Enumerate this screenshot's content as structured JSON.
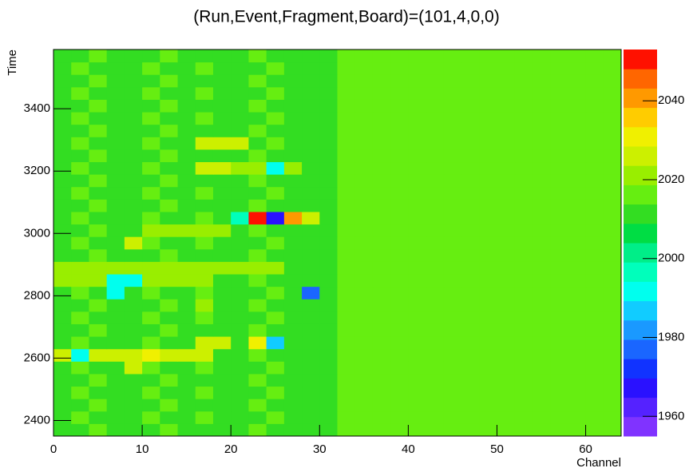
{
  "chart_data": {
    "type": "heatmap",
    "title": "(Run,Event,Fragment,Board)=(101,4,0,0)",
    "xlabel": "Channel",
    "ylabel": "Time",
    "xlim": [
      0,
      64
    ],
    "ylim": [
      2350,
      3590
    ],
    "xticks": [
      0,
      10,
      20,
      30,
      40,
      50,
      60
    ],
    "yticks": [
      2400,
      2600,
      2800,
      3000,
      3200,
      3400
    ],
    "zlim": [
      1955,
      2053
    ],
    "zticks": [
      1960,
      1980,
      2000,
      2020,
      2040
    ],
    "palette": [
      "#8033ff",
      "#5522ff",
      "#2a11ff",
      "#1133ff",
      "#1a66ff",
      "#1a99ff",
      "#11ccff",
      "#00ffee",
      "#00ffbb",
      "#00ee88",
      "#00dd44",
      "#33dd22",
      "#66ee11",
      "#99ee00",
      "#ccf000",
      "#f0f000",
      "#ffcc00",
      "#ff9900",
      "#ff6600",
      "#ff1100"
    ],
    "z": [
      [
        2013,
        2012,
        2014,
        2013,
        2012,
        2013,
        2014,
        2012,
        2013,
        2013,
        2012,
        2014,
        2013,
        2012,
        2013,
        2010,
        2016,
        2015,
        2016,
        2017,
        2016,
        2015,
        2016,
        2016,
        2017,
        2015,
        2016,
        2016,
        2015,
        2016,
        2017,
        2016
      ],
      [
        2012,
        2014,
        2013,
        2012,
        2013,
        2014,
        2012,
        2013,
        2014,
        2012,
        2013,
        2013,
        2014,
        2013,
        2012,
        2011,
        2015,
        2016,
        2017,
        2016,
        2015,
        2016,
        2017,
        2015,
        2016,
        2016,
        2017,
        2016,
        2016,
        2015,
        2016,
        2017
      ],
      [
        2013,
        2012,
        2014,
        2013,
        2012,
        2013,
        2014,
        2012,
        2013,
        2013,
        2012,
        2014,
        2013,
        2012,
        2013,
        2010,
        2016,
        2015,
        2016,
        2017,
        2016,
        2015,
        2016,
        2016,
        2017,
        2015,
        2016,
        2016,
        2015,
        2016,
        2017,
        2016
      ],
      [
        2012,
        2014,
        2013,
        2012,
        2013,
        2014,
        2012,
        2013,
        2014,
        2012,
        2013,
        2013,
        2014,
        2013,
        2012,
        2011,
        2015,
        2016,
        2017,
        2016,
        2015,
        2016,
        2017,
        2015,
        2016,
        2016,
        2017,
        2016,
        2016,
        2015,
        2016,
        2017
      ],
      [
        2013,
        2012,
        2014,
        2013,
        2012,
        2013,
        2014,
        2012,
        2013,
        2013,
        2012,
        2014,
        2013,
        2012,
        2013,
        2010,
        2016,
        2015,
        2016,
        2017,
        2016,
        2015,
        2016,
        2016,
        2017,
        2015,
        2016,
        2016,
        2015,
        2016,
        2017,
        2016
      ],
      [
        2012,
        2014,
        2013,
        2012,
        2026,
        2014,
        2012,
        2013,
        2014,
        2012,
        2013,
        2013,
        2014,
        2013,
        2012,
        2011,
        2015,
        2016,
        2017,
        2016,
        2015,
        2016,
        2017,
        2015,
        2016,
        2016,
        2017,
        2016,
        2016,
        2015,
        2016,
        2017
      ],
      [
        2024,
        1992,
        2024,
        2024,
        2024,
        2030,
        2024,
        2024,
        2024,
        2013,
        2012,
        2014,
        2013,
        2012,
        2013,
        2010,
        2016,
        2015,
        2016,
        2017,
        2016,
        2015,
        2016,
        2016,
        2017,
        2015,
        2016,
        2016,
        2015,
        2016,
        2017,
        2016
      ],
      [
        2012,
        2014,
        2013,
        2012,
        2013,
        2014,
        2012,
        2013,
        2026,
        2024,
        2013,
        2030,
        1985,
        2013,
        2012,
        2011,
        2015,
        2016,
        2017,
        2016,
        2015,
        2016,
        2017,
        2015,
        2016,
        2016,
        2017,
        2016,
        2016,
        2015,
        2016,
        2017
      ],
      [
        2013,
        2012,
        2014,
        2013,
        2012,
        2013,
        2014,
        2012,
        2013,
        2013,
        2012,
        2014,
        2013,
        2012,
        2013,
        2010,
        2016,
        2015,
        2016,
        2017,
        2016,
        2015,
        2016,
        2016,
        2017,
        2015,
        2016,
        2016,
        2015,
        2016,
        2017,
        2016
      ],
      [
        2012,
        2014,
        2013,
        2012,
        2013,
        2014,
        2012,
        2013,
        2014,
        2012,
        2013,
        2013,
        2014,
        2013,
        2012,
        2011,
        2015,
        2016,
        2017,
        2016,
        2015,
        2016,
        2017,
        2015,
        2016,
        2016,
        2017,
        2016,
        2016,
        2015,
        2016,
        2017
      ],
      [
        2013,
        2012,
        2014,
        2013,
        2012,
        2013,
        2014,
        2012,
        2022,
        2013,
        2012,
        2014,
        2013,
        2012,
        2013,
        2010,
        2016,
        2015,
        2016,
        2017,
        2016,
        2015,
        2016,
        2016,
        2017,
        2015,
        2016,
        2016,
        2015,
        2016,
        2017,
        2016
      ],
      [
        2012,
        2014,
        2013,
        1990,
        2013,
        2014,
        2012,
        2013,
        2014,
        2012,
        2013,
        2013,
        2014,
        2013,
        1975,
        2011,
        2015,
        2016,
        2017,
        2016,
        2015,
        2016,
        2017,
        2015,
        2016,
        2016,
        2017,
        2016,
        2016,
        2015,
        2016,
        2017
      ],
      [
        2022,
        2022,
        2022,
        1992,
        1990,
        2022,
        2022,
        2022,
        2022,
        2013,
        2012,
        2014,
        2013,
        2012,
        2013,
        2010,
        2016,
        2015,
        2016,
        2017,
        2016,
        2015,
        2016,
        2016,
        2017,
        2015,
        2016,
        2016,
        2015,
        2016,
        2017,
        2016
      ],
      [
        2022,
        2022,
        2022,
        2022,
        2022,
        2022,
        2022,
        2022,
        2022,
        2022,
        2022,
        2022,
        2022,
        2013,
        2012,
        2011,
        2015,
        2016,
        2017,
        2016,
        2015,
        2016,
        2017,
        2015,
        2016,
        2016,
        2017,
        2016,
        2016,
        2015,
        2016,
        2017
      ],
      [
        2013,
        2012,
        2014,
        2013,
        2012,
        2013,
        2014,
        2012,
        2013,
        2013,
        2012,
        2014,
        2013,
        2012,
        2013,
        2010,
        2016,
        2015,
        2016,
        2017,
        2016,
        2015,
        2016,
        2016,
        2017,
        2015,
        2016,
        2016,
        2015,
        2016,
        2017,
        2016
      ],
      [
        2012,
        2014,
        2013,
        2012,
        2026,
        2014,
        2012,
        2013,
        2014,
        2012,
        2013,
        2013,
        2014,
        2013,
        2012,
        2011,
        2015,
        2016,
        2017,
        2016,
        2015,
        2016,
        2017,
        2015,
        2016,
        2016,
        2017,
        2016,
        2016,
        2015,
        2016,
        2017
      ],
      [
        2013,
        2012,
        2014,
        2013,
        2012,
        2020,
        2020,
        2020,
        2020,
        2020,
        2012,
        2014,
        2013,
        2012,
        2013,
        2010,
        2016,
        2015,
        2016,
        2017,
        2016,
        2015,
        2016,
        2016,
        2017,
        2015,
        2016,
        2016,
        2015,
        2016,
        2017,
        2016
      ],
      [
        2012,
        2014,
        2013,
        2012,
        2013,
        2014,
        2012,
        2013,
        2014,
        2012,
        1995,
        2050,
        1968,
        2040,
        2026,
        2011,
        2015,
        2016,
        2017,
        2016,
        2015,
        2016,
        2017,
        2015,
        2016,
        2016,
        2017,
        2016,
        2016,
        2015,
        2016,
        2017
      ],
      [
        2013,
        2012,
        2014,
        2013,
        2012,
        2013,
        2014,
        2012,
        2013,
        2013,
        2012,
        2014,
        2013,
        2012,
        2013,
        2010,
        2016,
        2015,
        2016,
        2017,
        2016,
        2015,
        2016,
        2016,
        2017,
        2015,
        2016,
        2016,
        2015,
        2016,
        2017,
        2016
      ],
      [
        2012,
        2014,
        2013,
        2012,
        2013,
        2014,
        2012,
        2013,
        2014,
        2012,
        2013,
        2013,
        2014,
        2013,
        2012,
        2011,
        2015,
        2016,
        2017,
        2016,
        2015,
        2016,
        2017,
        2015,
        2016,
        2016,
        2017,
        2016,
        2016,
        2015,
        2016,
        2017
      ],
      [
        2013,
        2012,
        2014,
        2013,
        2012,
        2013,
        2014,
        2012,
        2013,
        2013,
        2012,
        2014,
        2013,
        2012,
        2013,
        2010,
        2016,
        2015,
        2016,
        2017,
        2016,
        2015,
        2016,
        2016,
        2017,
        2015,
        2016,
        2016,
        2015,
        2016,
        2017,
        2016
      ],
      [
        2012,
        2014,
        2013,
        2012,
        2013,
        2014,
        2012,
        2013,
        2026,
        2026,
        2022,
        2022,
        1992,
        2022,
        2012,
        2011,
        2015,
        2016,
        2017,
        2016,
        2015,
        2016,
        2017,
        2015,
        2016,
        2016,
        2017,
        2016,
        2016,
        2015,
        2016,
        2017
      ],
      [
        2013,
        2012,
        2014,
        2013,
        2012,
        2013,
        2014,
        2012,
        2013,
        2013,
        2012,
        2014,
        2013,
        2012,
        2013,
        2010,
        2016,
        2015,
        2016,
        2017,
        2016,
        2015,
        2016,
        2016,
        2017,
        2015,
        2016,
        2016,
        2015,
        2016,
        2017,
        2016
      ],
      [
        2012,
        2014,
        2013,
        2012,
        2013,
        2014,
        2012,
        2013,
        2026,
        2026,
        2026,
        2013,
        2014,
        2013,
        2012,
        2011,
        2015,
        2016,
        2017,
        2016,
        2015,
        2016,
        2017,
        2015,
        2016,
        2016,
        2017,
        2016,
        2016,
        2015,
        2016,
        2017
      ],
      [
        2013,
        2012,
        2014,
        2013,
        2012,
        2013,
        2014,
        2012,
        2013,
        2013,
        2012,
        2014,
        2013,
        2012,
        2013,
        2010,
        2016,
        2015,
        2016,
        2017,
        2016,
        2015,
        2016,
        2016,
        2017,
        2015,
        2016,
        2016,
        2015,
        2016,
        2017,
        2016
      ],
      [
        2012,
        2014,
        2013,
        2012,
        2013,
        2014,
        2012,
        2013,
        2014,
        2012,
        2013,
        2013,
        2014,
        2013,
        2012,
        2011,
        2015,
        2016,
        2017,
        2016,
        2015,
        2016,
        2017,
        2015,
        2016,
        2016,
        2017,
        2016,
        2016,
        2015,
        2016,
        2017
      ],
      [
        2013,
        2012,
        2014,
        2013,
        2012,
        2013,
        2014,
        2012,
        2013,
        2013,
        2012,
        2014,
        2013,
        2012,
        2013,
        2010,
        2016,
        2015,
        2016,
        2017,
        2016,
        2015,
        2016,
        2016,
        2017,
        2015,
        2016,
        2016,
        2015,
        2016,
        2017,
        2016
      ],
      [
        2012,
        2014,
        2013,
        2012,
        2013,
        2014,
        2012,
        2013,
        2014,
        2012,
        2013,
        2013,
        2014,
        2013,
        2012,
        2011,
        2015,
        2016,
        2017,
        2016,
        2015,
        2016,
        2017,
        2015,
        2016,
        2016,
        2017,
        2016,
        2016,
        2015,
        2016,
        2017
      ],
      [
        2013,
        2012,
        2014,
        2013,
        2012,
        2013,
        2014,
        2012,
        2013,
        2013,
        2012,
        2014,
        2013,
        2012,
        2013,
        2010,
        2016,
        2015,
        2016,
        2017,
        2016,
        2015,
        2016,
        2016,
        2017,
        2015,
        2016,
        2016,
        2015,
        2016,
        2017,
        2016
      ],
      [
        2012,
        2014,
        2013,
        2012,
        2013,
        2014,
        2012,
        2013,
        2014,
        2012,
        2013,
        2013,
        2014,
        2013,
        2012,
        2011,
        2015,
        2016,
        2017,
        2016,
        2015,
        2016,
        2017,
        2015,
        2016,
        2016,
        2017,
        2016,
        2016,
        2015,
        2016,
        2017
      ],
      [
        2013,
        2012,
        2014,
        2013,
        2012,
        2013,
        2014,
        2012,
        2013,
        2013,
        2012,
        2014,
        2013,
        2012,
        2013,
        2010,
        2016,
        2015,
        2016,
        2017,
        2016,
        2015,
        2016,
        2016,
        2017,
        2015,
        2016,
        2016,
        2015,
        2016,
        2017,
        2016
      ]
    ]
  }
}
